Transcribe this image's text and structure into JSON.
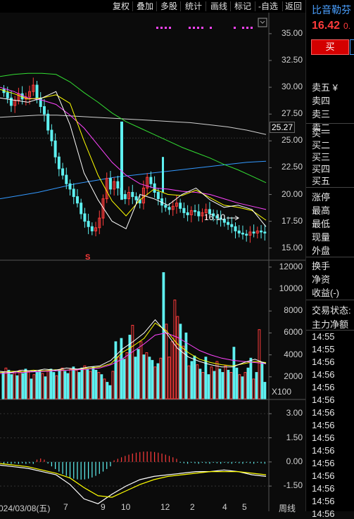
{
  "toolbar": {
    "buttons": [
      "复权",
      "叠加",
      "多股",
      "统计",
      "画线",
      "标记",
      "-自选",
      "返回"
    ]
  },
  "stock": {
    "name": "比音勒芬",
    "price": "16.42",
    "price_suffix": "0."
  },
  "trade": {
    "buy": "买"
  },
  "order_book": {
    "sell_header": "卖五 ¥",
    "sells": [
      "卖四",
      "卖三",
      "卖二",
      "卖一"
    ],
    "buys": [
      "买一",
      "买二",
      "买三",
      "买四",
      "买五"
    ]
  },
  "quote_fields": [
    "涨停",
    "最高",
    "最低",
    "现量",
    "外盘",
    "换手",
    "净资",
    "收益(-)"
  ],
  "status": {
    "trade_state": "交易状态:",
    "main_flow": "主力净额"
  },
  "ticks": [
    "14:55",
    "14:55",
    "14:56",
    "14:56",
    "14:56",
    "14:56",
    "14:56",
    "14:56",
    "14:56",
    "14:56",
    "14:56",
    "14:56",
    "14:56",
    "14:56",
    "14:56"
  ],
  "price_axis": [
    "35.00",
    "32.50",
    "30.00",
    "27.50",
    "25.00",
    "22.50",
    "20.00",
    "17.50",
    "15.00"
  ],
  "price_marker": "25.27",
  "low_annotation": "16.10",
  "volume_axis": [
    "12000",
    "10000",
    "8000",
    "6000",
    "4000",
    "2000"
  ],
  "volume_unit": "X100",
  "macd_axis": [
    "3.00",
    "1.50",
    "0.00",
    "-1.50"
  ],
  "date_axis": [
    "024/03/08(五)",
    "7",
    "9",
    "10",
    "12",
    "2",
    "4",
    "5",
    "周线"
  ],
  "marker_s": "S",
  "colors": {
    "up": "#ff3b3b",
    "down": "#5ef0f0",
    "ma5": "#ffffff",
    "ma10": "#ffff00",
    "ma20": "#ff44ff",
    "ma60": "#33dd33",
    "ma120": "#3399ff",
    "ma250": "#cfcfcf"
  },
  "chart_data": [
    {
      "type": "line",
      "title": "",
      "ylim": [
        14,
        36.5
      ],
      "series": [
        {
          "values": [
            31.0,
            31.2,
            31.3,
            31.3,
            31.2,
            30.5,
            29.5,
            28.6,
            27.6,
            26.8,
            26.2,
            25.6,
            25.0,
            24.4,
            23.9,
            23.4,
            22.8,
            22.3,
            21.7,
            21.1
          ]
        },
        {
          "values": [
            30.0,
            29.6,
            29.0,
            28.8,
            28.4,
            27.4,
            26.2,
            24.6,
            23.0,
            21.8,
            21.0,
            20.6,
            20.5,
            20.3,
            20.2,
            20.0,
            19.6,
            19.2,
            18.9,
            18.6
          ]
        },
        {
          "values": [
            29.8,
            29.4,
            28.9,
            29.0,
            29.3,
            28.5,
            25.0,
            21.8,
            19.4,
            18.0,
            19.5,
            20.5,
            20.0,
            19.9,
            20.4,
            19.7,
            19.0,
            18.8,
            18.5,
            17.6
          ]
        },
        {
          "values": [
            29.0,
            28.8,
            28.6,
            29.0,
            29.6,
            26.5,
            22.0,
            19.5,
            17.5,
            16.8,
            20.0,
            19.6,
            19.0,
            20.0,
            20.6,
            19.5,
            18.8,
            19.0,
            18.6,
            17.0
          ]
        }
      ]
    },
    {
      "type": "bar",
      "title": "",
      "ylim": [
        0,
        12500
      ],
      "values": [
        2400,
        2800,
        2600,
        2200,
        2500,
        2100,
        2600,
        2300,
        2700,
        2500,
        1800,
        2200,
        2400,
        2600,
        2300,
        2000,
        2500,
        2700,
        2400,
        2100,
        2600,
        2800,
        2500,
        2300,
        2700,
        2900,
        2600,
        2400,
        2800,
        3000,
        2700,
        2500,
        2900,
        2600,
        2400,
        2200,
        1800,
        1500,
        1200,
        2500,
        5200,
        3800,
        5500,
        3600,
        4200,
        5800,
        6700,
        3800,
        4500,
        5200,
        4000,
        4200,
        3800,
        3500,
        2900,
        3200,
        3700,
        11500,
        6800,
        3800,
        5200,
        9000,
        7500,
        6800,
        4800,
        6000,
        3000,
        3400,
        3900,
        3100,
        2700,
        2400,
        3800,
        2200,
        2900,
        2500,
        3400,
        2700,
        2400,
        3000,
        2600,
        2400,
        4700,
        2800,
        2200,
        2000,
        2400,
        2800,
        3700,
        1800,
        2400,
        6300,
        3300,
        1500
      ]
    },
    {
      "type": "line",
      "title": "",
      "ylim": [
        -2.5,
        3.8
      ],
      "series": [
        {
          "values": [
            -0.2,
            -0.3,
            -0.4,
            -0.6,
            -0.8,
            -1.4,
            -2.3,
            -2.6,
            -2.0,
            -1.5,
            -1.1,
            -0.9,
            -0.8,
            -0.7,
            -0.6,
            -0.6,
            -0.5,
            -0.6,
            -0.8,
            -0.9
          ]
        },
        {
          "values": [
            -0.1,
            -0.2,
            -0.3,
            -0.5,
            -0.7,
            -1.0,
            -1.6,
            -2.1,
            -2.2,
            -1.8,
            -1.4,
            -1.1,
            -0.9,
            -0.8,
            -0.7,
            -0.6,
            -0.6,
            -0.6,
            -0.7,
            -0.8
          ]
        }
      ]
    }
  ]
}
